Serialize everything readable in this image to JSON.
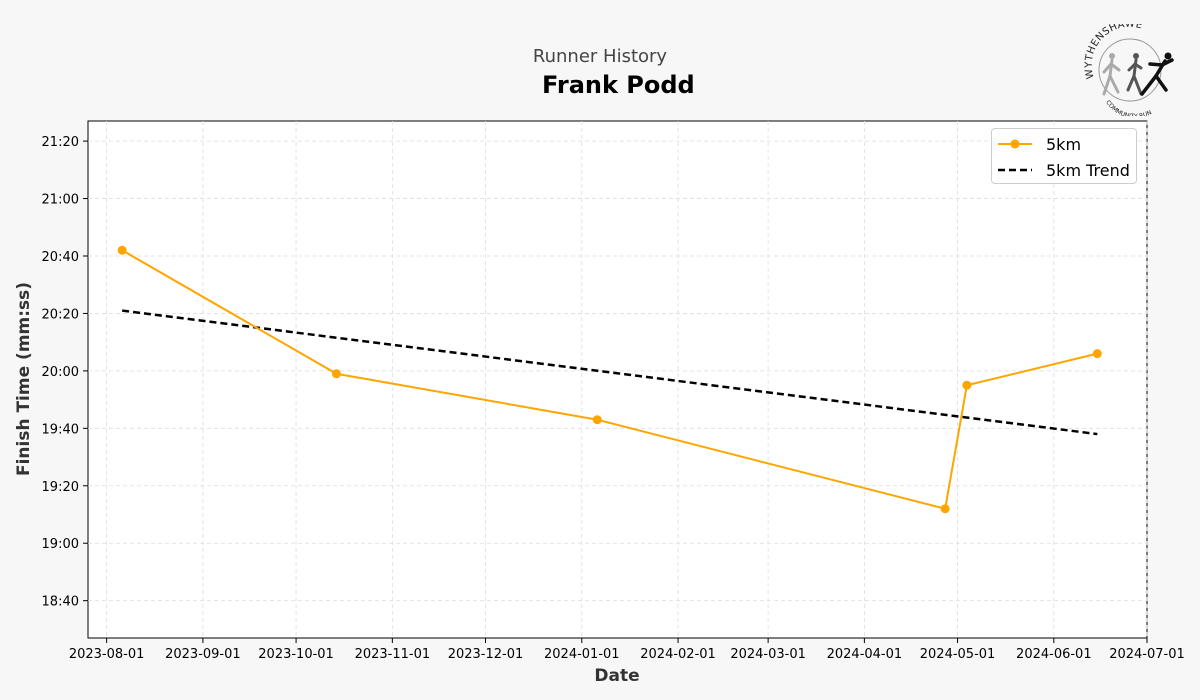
{
  "header": {
    "supertitle": "Runner History",
    "title": "Frank Podd"
  },
  "logo": {
    "text_top": "WYTHENSHAWE",
    "text_bottom": "COMMUNITY RUN"
  },
  "colors": {
    "series": "#ffa500",
    "trend": "#000000",
    "background": "#f7f7f7",
    "plot_background": "#ffffff",
    "grid": "#dddddd"
  },
  "chart_data": {
    "type": "line",
    "xlabel": "Date",
    "ylabel": "Finish Time (mm:ss)",
    "x_ticks": [
      "2023-08-01",
      "2023-09-01",
      "2023-10-01",
      "2023-11-01",
      "2023-12-01",
      "2024-01-01",
      "2024-02-01",
      "2024-03-01",
      "2024-04-01",
      "2024-05-01",
      "2024-06-01",
      "2024-07-01"
    ],
    "y_ticks": [
      "18:40",
      "19:00",
      "19:20",
      "19:40",
      "20:00",
      "20:20",
      "20:40",
      "21:00",
      "21:20"
    ],
    "xlim": [
      "2023-07-26",
      "2024-07-01"
    ],
    "ylim": [
      "18:27",
      "21:27"
    ],
    "grid": true,
    "legend_position": "top-right",
    "series": [
      {
        "name": "5km",
        "style": "line-with-markers",
        "points": [
          {
            "x": "2023-08-06",
            "y": "20:42"
          },
          {
            "x": "2023-10-14",
            "y": "19:59"
          },
          {
            "x": "2024-01-06",
            "y": "19:43"
          },
          {
            "x": "2024-04-27",
            "y": "19:12"
          },
          {
            "x": "2024-05-04",
            "y": "19:55"
          },
          {
            "x": "2024-06-15",
            "y": "20:06"
          }
        ]
      },
      {
        "name": "5km Trend",
        "style": "dashed",
        "points": [
          {
            "x": "2023-08-06",
            "y": "20:21"
          },
          {
            "x": "2024-06-15",
            "y": "19:38"
          }
        ]
      }
    ]
  }
}
